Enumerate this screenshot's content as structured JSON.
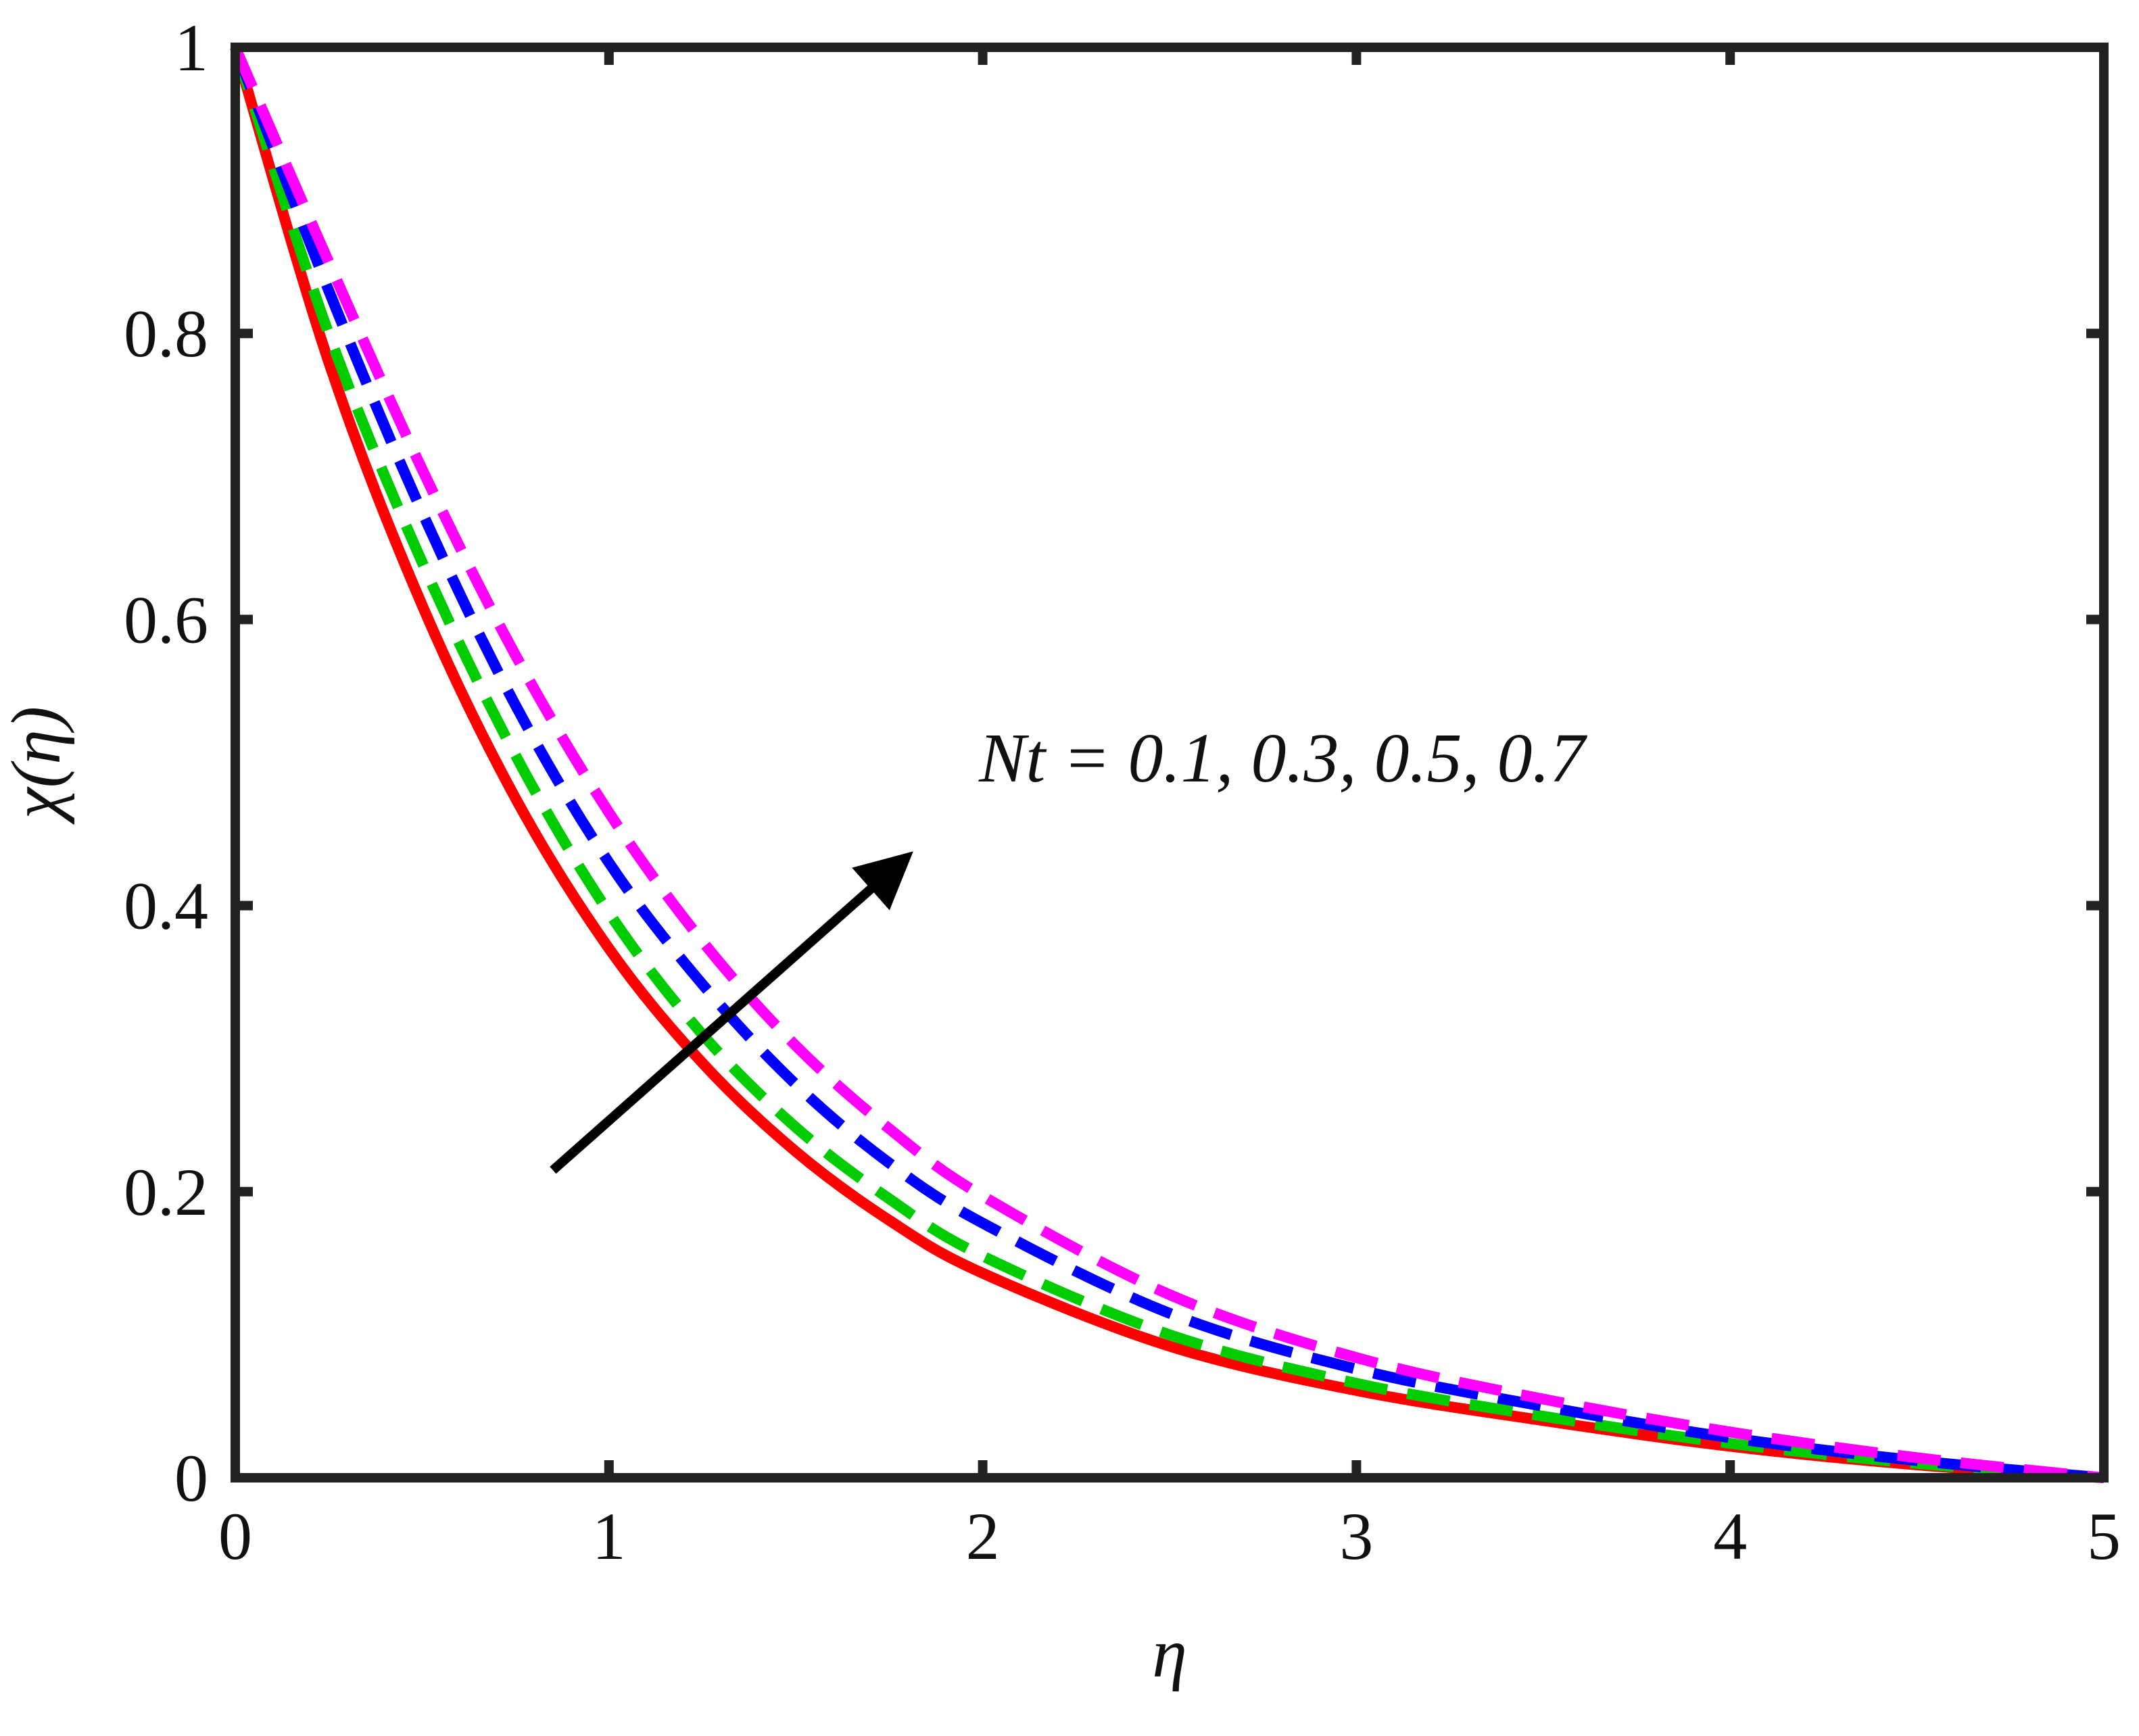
{
  "chart_data": {
    "type": "line",
    "xlabel": "η",
    "ylabel": "χ(η)",
    "xlim": [
      0,
      5
    ],
    "ylim": [
      0,
      1
    ],
    "xticks": [
      "0",
      "1",
      "2",
      "3",
      "4",
      "5"
    ],
    "yticks": [
      "0",
      "0.2",
      "0.4",
      "0.6",
      "0.8",
      "1"
    ],
    "grid": false,
    "x": [
      0,
      0.25,
      0.5,
      0.75,
      1.0,
      1.25,
      1.5,
      1.75,
      2.0,
      2.5,
      3.0,
      3.5,
      4.0,
      4.5,
      5.0
    ],
    "series": [
      {
        "color": "#ff0000",
        "style": "solid",
        "values": [
          1.0,
          0.78,
          0.61,
          0.475,
          0.37,
          0.29,
          0.228,
          0.18,
          0.143,
          0.092,
          0.061,
          0.04,
          0.022,
          0.009,
          0.0
        ]
      },
      {
        "color": "#00cc00",
        "style": "dashed",
        "values": [
          1.0,
          0.8,
          0.64,
          0.505,
          0.395,
          0.31,
          0.245,
          0.195,
          0.155,
          0.1,
          0.066,
          0.043,
          0.024,
          0.01,
          0.0
        ]
      },
      {
        "color": "#0000ff",
        "style": "dashed",
        "values": [
          1.0,
          0.83,
          0.675,
          0.54,
          0.43,
          0.345,
          0.275,
          0.22,
          0.178,
          0.115,
          0.076,
          0.05,
          0.028,
          0.012,
          0.0
        ]
      },
      {
        "color": "#ff00ff",
        "style": "dashed",
        "values": [
          1.0,
          0.85,
          0.705,
          0.575,
          0.465,
          0.375,
          0.302,
          0.244,
          0.197,
          0.128,
          0.084,
          0.055,
          0.032,
          0.014,
          0.0
        ]
      }
    ],
    "annotation": {
      "text": "Nt = 0.1, 0.3, 0.5, 0.7",
      "arrow_from": [
        0.85,
        0.215
      ],
      "arrow_to": [
        1.78,
        0.43
      ],
      "color": "#000000"
    }
  }
}
